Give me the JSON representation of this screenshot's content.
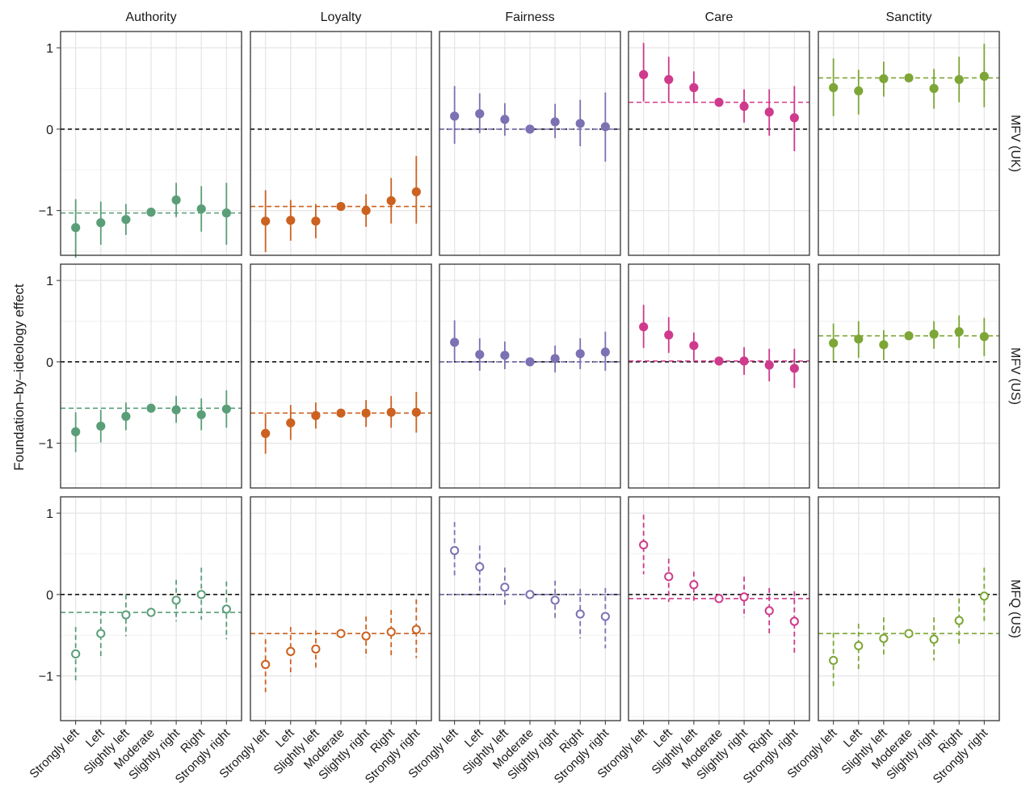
{
  "chart_data": {
    "type": "scatter",
    "ylabel": "Foundation–by–ideology effect",
    "categories": [
      "Strongly left",
      "Left",
      "Slightly left",
      "Moderate",
      "Slightly right",
      "Right",
      "Strongly right"
    ],
    "ylim": [
      -1.55,
      1.2
    ],
    "y_ticks": [
      {
        "value": 1,
        "label": "1"
      },
      {
        "value": 0,
        "label": "0"
      },
      {
        "value": -1,
        "label": "−1"
      }
    ],
    "grid": true,
    "reference_line": 0,
    "columns": [
      "Authority",
      "Loyalty",
      "Fairness",
      "Care",
      "Sanctity"
    ],
    "rows": [
      {
        "label": "MFV (UK)",
        "point_style": "filled",
        "interval_style": "solid"
      },
      {
        "label": "MFV (US)",
        "point_style": "filled",
        "interval_style": "solid"
      },
      {
        "label": "MFQ (US)",
        "point_style": "open",
        "interval_style": "dashed"
      }
    ],
    "colors": {
      "Authority": "#5a9e78",
      "Loyalty": "#cc6120",
      "Fairness": "#7b72b3",
      "Care": "#cf3a8c",
      "Sanctity": "#7da636"
    },
    "panels": [
      {
        "row": "MFV (UK)",
        "foundation": "Authority",
        "mean": -1.03,
        "values": [
          -1.21,
          -1.15,
          -1.11,
          -1.02,
          -0.87,
          -0.98,
          -1.03
        ],
        "lower": [
          -1.58,
          -1.42,
          -1.3,
          -1.02,
          -1.08,
          -1.26,
          -1.42
        ],
        "upper": [
          -0.86,
          -0.89,
          -0.92,
          -1.02,
          -0.66,
          -0.7,
          -0.66
        ]
      },
      {
        "row": "MFV (UK)",
        "foundation": "Loyalty",
        "mean": -0.95,
        "values": [
          -1.13,
          -1.12,
          -1.13,
          -0.95,
          -1.0,
          -0.88,
          -0.77
        ],
        "lower": [
          -1.51,
          -1.37,
          -1.34,
          -0.95,
          -1.2,
          -1.16,
          -1.16
        ],
        "upper": [
          -0.75,
          -0.87,
          -0.92,
          -0.95,
          -0.8,
          -0.6,
          -0.33
        ]
      },
      {
        "row": "MFV (UK)",
        "foundation": "Fairness",
        "mean": 0.0,
        "values": [
          0.16,
          0.19,
          0.12,
          0.0,
          0.09,
          0.07,
          0.03
        ],
        "lower": [
          -0.18,
          -0.05,
          -0.08,
          0.0,
          -0.11,
          -0.21,
          -0.4
        ],
        "upper": [
          0.53,
          0.44,
          0.32,
          0.0,
          0.31,
          0.36,
          0.45
        ]
      },
      {
        "row": "MFV (UK)",
        "foundation": "Care",
        "mean": 0.33,
        "values": [
          0.67,
          0.61,
          0.51,
          0.33,
          0.28,
          0.21,
          0.14
        ],
        "lower": [
          0.34,
          0.33,
          0.32,
          0.33,
          0.08,
          -0.08,
          -0.27
        ],
        "upper": [
          1.06,
          0.89,
          0.71,
          0.33,
          0.49,
          0.49,
          0.53
        ]
      },
      {
        "row": "MFV (UK)",
        "foundation": "Sanctity",
        "mean": 0.63,
        "values": [
          0.51,
          0.47,
          0.62,
          0.63,
          0.5,
          0.61,
          0.65
        ],
        "lower": [
          0.16,
          0.18,
          0.4,
          0.63,
          0.25,
          0.33,
          0.27
        ],
        "upper": [
          0.87,
          0.73,
          0.83,
          0.63,
          0.74,
          0.89,
          1.05
        ]
      },
      {
        "row": "MFV (US)",
        "foundation": "Authority",
        "mean": -0.57,
        "values": [
          -0.86,
          -0.79,
          -0.67,
          -0.57,
          -0.59,
          -0.65,
          -0.58
        ],
        "lower": [
          -1.11,
          -0.99,
          -0.84,
          -0.57,
          -0.75,
          -0.84,
          -0.81
        ],
        "upper": [
          -0.62,
          -0.59,
          -0.5,
          -0.57,
          -0.42,
          -0.45,
          -0.35
        ]
      },
      {
        "row": "MFV (US)",
        "foundation": "Loyalty",
        "mean": -0.63,
        "values": [
          -0.88,
          -0.75,
          -0.66,
          -0.63,
          -0.63,
          -0.62,
          -0.62
        ],
        "lower": [
          -1.13,
          -0.96,
          -0.82,
          -0.63,
          -0.8,
          -0.81,
          -0.87
        ],
        "upper": [
          -0.63,
          -0.53,
          -0.5,
          -0.63,
          -0.47,
          -0.42,
          -0.37
        ]
      },
      {
        "row": "MFV (US)",
        "foundation": "Fairness",
        "mean": 0.0,
        "values": [
          0.24,
          0.09,
          0.08,
          0.0,
          0.04,
          0.1,
          0.12
        ],
        "lower": [
          0.01,
          -0.11,
          -0.09,
          0.0,
          -0.13,
          -0.09,
          -0.11
        ],
        "upper": [
          0.51,
          0.29,
          0.25,
          0.0,
          0.2,
          0.29,
          0.37
        ]
      },
      {
        "row": "MFV (US)",
        "foundation": "Care",
        "mean": 0.01,
        "values": [
          0.43,
          0.33,
          0.2,
          0.01,
          0.01,
          -0.04,
          -0.08
        ],
        "lower": [
          0.17,
          0.11,
          0.02,
          0.01,
          -0.16,
          -0.24,
          -0.32
        ],
        "upper": [
          0.7,
          0.55,
          0.36,
          0.01,
          0.18,
          0.16,
          0.16
        ]
      },
      {
        "row": "MFV (US)",
        "foundation": "Sanctity",
        "mean": 0.32,
        "values": [
          0.23,
          0.28,
          0.21,
          0.32,
          0.34,
          0.37,
          0.31
        ],
        "lower": [
          0.01,
          0.05,
          0.02,
          0.32,
          0.16,
          0.17,
          0.07
        ],
        "upper": [
          0.47,
          0.5,
          0.39,
          0.32,
          0.5,
          0.57,
          0.54
        ]
      },
      {
        "row": "MFQ (US)",
        "foundation": "Authority",
        "mean": -0.22,
        "values": [
          -0.73,
          -0.48,
          -0.25,
          -0.22,
          -0.07,
          0.0,
          -0.18
        ],
        "lower": [
          -1.06,
          -0.79,
          -0.51,
          -0.22,
          -0.33,
          -0.31,
          -0.55
        ],
        "upper": [
          -0.4,
          -0.2,
          0.0,
          -0.22,
          0.18,
          0.33,
          0.16
        ]
      },
      {
        "row": "MFQ (US)",
        "foundation": "Loyalty",
        "mean": -0.48,
        "values": [
          -0.86,
          -0.7,
          -0.67,
          -0.48,
          -0.51,
          -0.46,
          -0.43
        ],
        "lower": [
          -1.2,
          -1.0,
          -0.9,
          -0.48,
          -0.77,
          -0.77,
          -0.78
        ],
        "upper": [
          -0.55,
          -0.4,
          -0.44,
          -0.48,
          -0.27,
          -0.19,
          -0.06
        ]
      },
      {
        "row": "MFQ (US)",
        "foundation": "Fairness",
        "mean": 0.0,
        "values": [
          0.54,
          0.34,
          0.09,
          0.0,
          -0.07,
          -0.24,
          -0.27
        ],
        "lower": [
          0.2,
          0.04,
          -0.15,
          0.0,
          -0.31,
          -0.54,
          -0.66
        ],
        "upper": [
          0.89,
          0.6,
          0.33,
          0.0,
          0.17,
          0.07,
          0.08
        ]
      },
      {
        "row": "MFQ (US)",
        "foundation": "Care",
        "mean": -0.05,
        "values": [
          0.61,
          0.22,
          0.12,
          -0.05,
          -0.03,
          -0.2,
          -0.33
        ],
        "lower": [
          0.25,
          -0.09,
          -0.11,
          -0.05,
          -0.28,
          -0.5,
          -0.72
        ],
        "upper": [
          0.98,
          0.44,
          0.28,
          -0.05,
          0.22,
          0.08,
          0.04
        ]
      },
      {
        "row": "MFQ (US)",
        "foundation": "Sanctity",
        "mean": -0.48,
        "values": [
          -0.81,
          -0.63,
          -0.54,
          -0.48,
          -0.55,
          -0.32,
          -0.02
        ],
        "lower": [
          -1.15,
          -0.93,
          -0.77,
          -0.48,
          -0.81,
          -0.63,
          -0.35
        ],
        "upper": [
          -0.47,
          -0.36,
          -0.28,
          -0.48,
          -0.28,
          -0.05,
          0.33
        ]
      }
    ]
  }
}
